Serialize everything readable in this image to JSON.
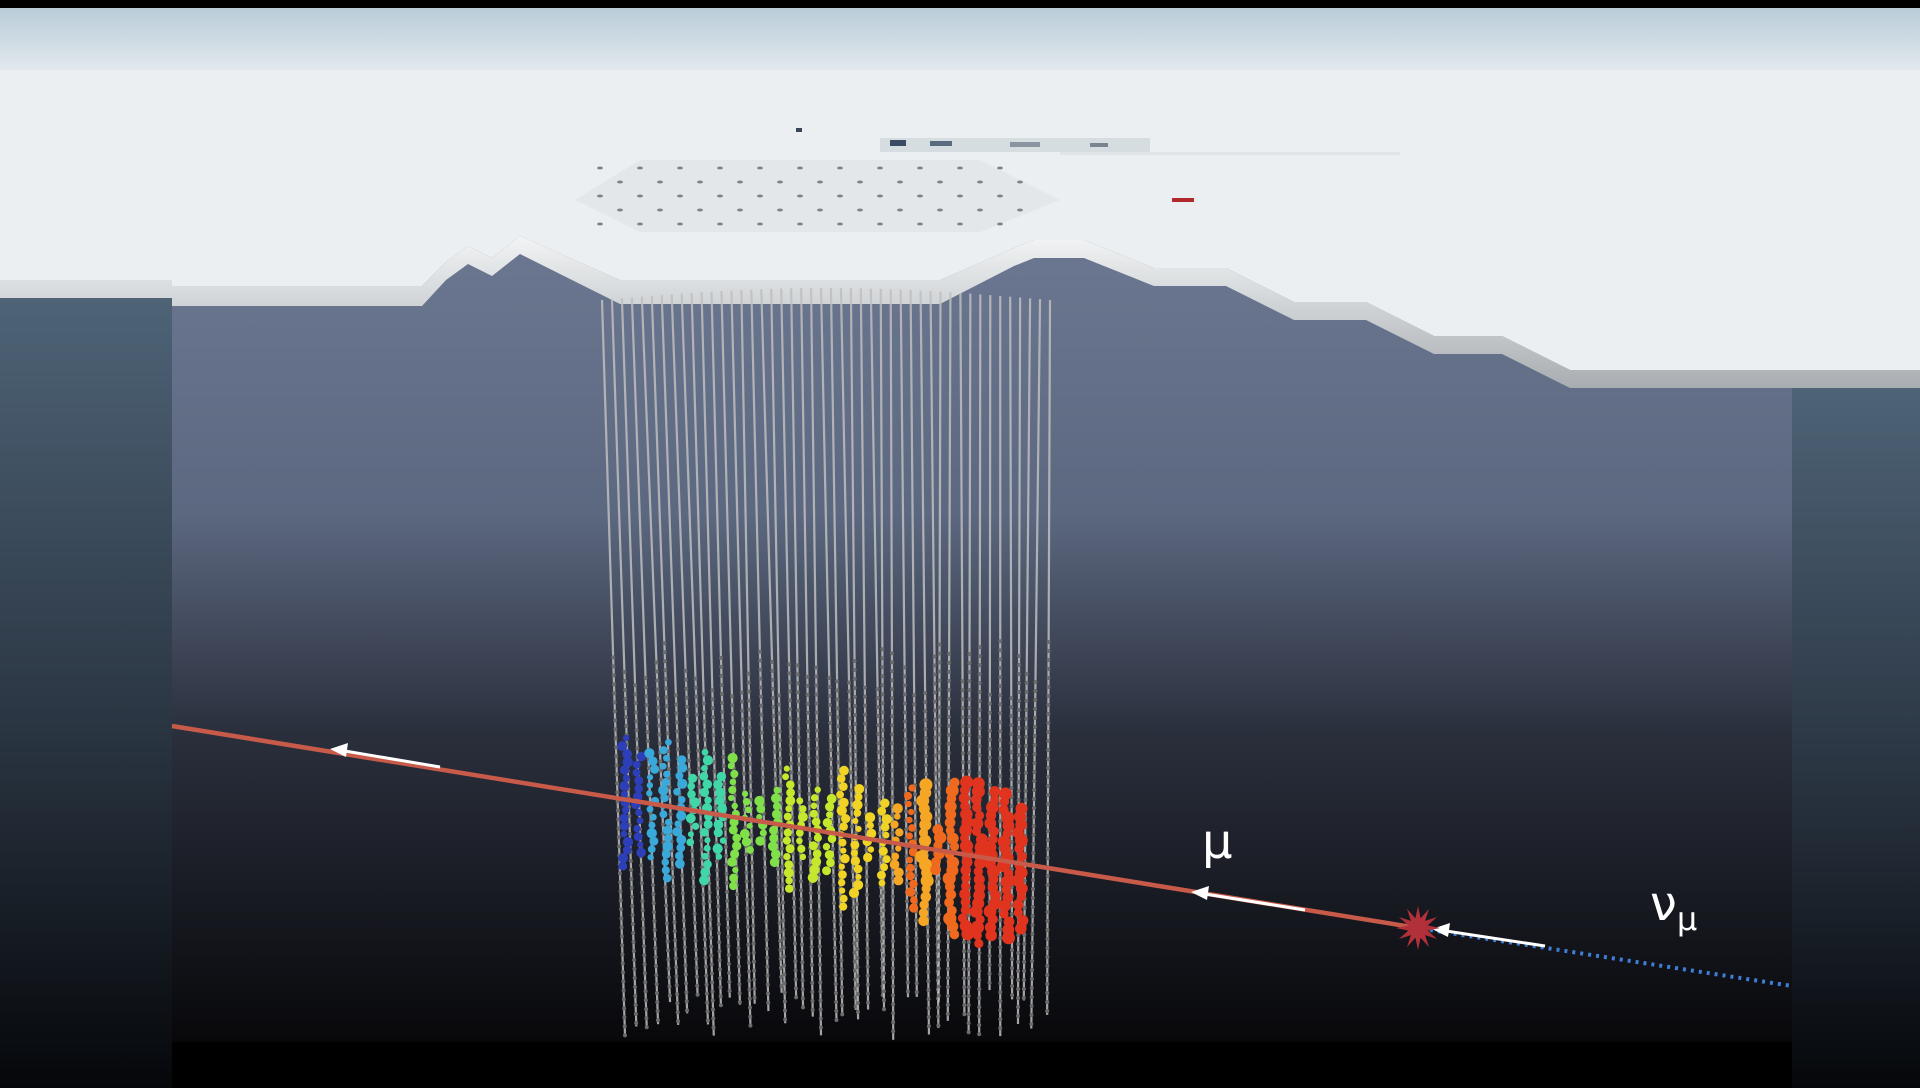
{
  "labels": {
    "muon_symbol": "μ",
    "neutrino_symbol": "ν",
    "neutrino_subscript": "μ"
  },
  "colors": {
    "background": "#000000",
    "sky": "#c9d8e2",
    "ice_surface": "#e8ecef",
    "ice_edge": "#c9cdd0",
    "ice_deep_top": "#6f7a92",
    "ice_deep_bottom": "#0c0c10",
    "side_panel_top": "#4d6275",
    "muon_track": "#c85a4a",
    "neutrino_track": "#3e7ed6",
    "interaction_star": "#b2303a",
    "string": "#bfbfbf",
    "arrow": "#ffffff"
  },
  "icons": {
    "interaction": "interaction-star-icon",
    "direction": "arrow-left-icon"
  },
  "hit_palette": [
    "#2d3fb8",
    "#3aa8d8",
    "#41d6a8",
    "#7fe04a",
    "#c6e82c",
    "#f0d324",
    "#f4a624",
    "#ef6a1e",
    "#e0341e"
  ]
}
